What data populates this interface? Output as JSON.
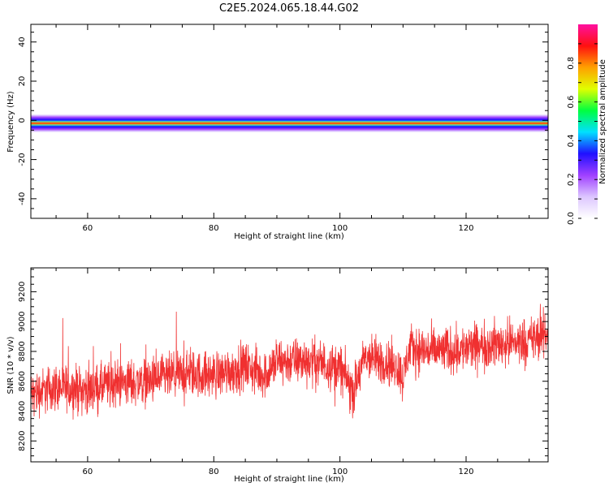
{
  "title": "C2E5.2024.065.18.44.G02",
  "chart_data": [
    {
      "type": "heatmap",
      "xlabel": "Height of straight line (km)",
      "ylabel": "Frequency (Hz)",
      "xlim": [
        51,
        133
      ],
      "ylim": [
        -50,
        49
      ],
      "xticks": [
        60,
        80,
        100,
        120
      ],
      "yticks": [
        40,
        20,
        0,
        -20,
        -40
      ],
      "colorbar": {
        "label": "Normalized spectral amplitude",
        "range": [
          0,
          1
        ],
        "ticks": [
          0.0,
          0.2,
          0.4,
          0.6,
          0.8
        ],
        "colors": [
          "#ffffff",
          "#dcc6ff",
          "#a040ff",
          "#2010ff",
          "#00e0ff",
          "#00ff40",
          "#e0ff00",
          "#ffa000",
          "#ff1010",
          "#ff10a0"
        ]
      },
      "band": {
        "center_hz": -1.5,
        "peak_amplitude": 1.0,
        "core_half_width_hz": 1.5,
        "outer_half_width_hz": 5
      }
    },
    {
      "type": "line",
      "xlabel": "Height of straight line (km)",
      "ylabel": "SNR (10 * v/v)",
      "xlim": [
        51,
        133
      ],
      "ylim": [
        8060,
        9360
      ],
      "xticks": [
        60,
        80,
        100,
        120
      ],
      "yticks": [
        8200,
        8400,
        8600,
        8800,
        9000,
        9200
      ],
      "color": "#f03030",
      "series": [
        {
          "x": [
            51,
            55,
            60,
            65,
            70,
            75,
            80,
            85,
            88,
            90,
            95,
            100,
            101,
            102,
            104,
            108,
            109,
            110,
            111,
            115,
            120,
            125,
            130,
            133
          ],
          "values": [
            8510,
            8560,
            8540,
            8590,
            8600,
            8650,
            8640,
            8700,
            8640,
            8730,
            8740,
            8690,
            8620,
            8520,
            8760,
            8720,
            8700,
            8620,
            8820,
            8800,
            8820,
            8850,
            8870,
            8920
          ],
          "noise_amplitude": 110
        }
      ]
    }
  ]
}
